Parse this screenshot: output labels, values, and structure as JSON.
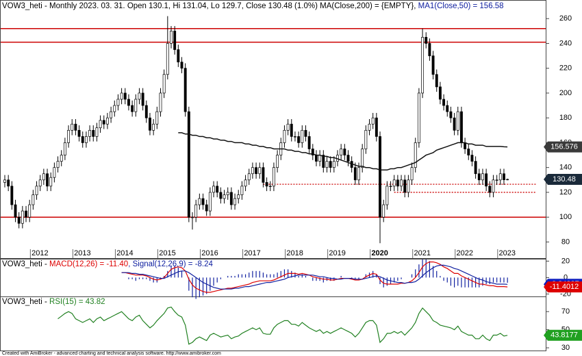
{
  "chart_data": {
    "type": "candlestick",
    "title": "VOW3_heti - Monthly 2023. 03. 31. Open 130.1, Hi 131.04, Lo 129.7, Close 130.48 (1.0%) MA(Close,200) = {EMPTY}, ",
    "ma_title": "MA1(Close,50) = 156.58",
    "footer": "Created with AmiBroker - advanced charting and technical analysis software. http://www.amibroker.com",
    "categories": [
      null,
      null,
      null,
      null,
      null,
      null,
      null,
      null,
      "2012",
      null,
      null,
      null,
      null,
      null,
      null,
      null,
      null,
      null,
      null,
      null,
      "2013",
      null,
      null,
      null,
      null,
      null,
      null,
      null,
      null,
      null,
      null,
      null,
      "2014",
      null,
      null,
      null,
      null,
      null,
      null,
      null,
      null,
      null,
      null,
      null,
      "2015",
      null,
      null,
      null,
      null,
      null,
      null,
      null,
      null,
      null,
      null,
      null,
      "2016",
      null,
      null,
      null,
      null,
      null,
      null,
      null,
      null,
      null,
      null,
      null,
      "2017",
      null,
      null,
      null,
      null,
      null,
      null,
      null,
      null,
      null,
      null,
      null,
      "2018",
      null,
      null,
      null,
      null,
      null,
      null,
      null,
      null,
      null,
      null,
      null,
      "2019",
      null,
      null,
      null,
      null,
      null,
      null,
      null,
      null,
      null,
      null,
      null,
      "2020",
      null,
      null,
      null,
      null,
      null,
      null,
      null,
      null,
      null,
      null,
      null,
      "2021",
      null,
      null,
      null,
      null,
      null,
      null,
      null,
      null,
      null,
      null,
      null,
      "2022",
      null,
      null,
      null,
      null,
      null,
      null,
      null,
      null,
      null,
      null,
      null,
      "2023",
      null,
      null
    ],
    "open": [
      128,
      130,
      125,
      110,
      100,
      95,
      105,
      100,
      110,
      118,
      125,
      130,
      135,
      125,
      132,
      140,
      145,
      150,
      160,
      170,
      175,
      170,
      165,
      160,
      165,
      170,
      165,
      172,
      178,
      175,
      180,
      185,
      190,
      195,
      200,
      195,
      190,
      185,
      195,
      200,
      190,
      180,
      170,
      175,
      185,
      200,
      215,
      240,
      250,
      235,
      225,
      220,
      185,
      100,
      100,
      110,
      115,
      110,
      105,
      120,
      125,
      120,
      115,
      118,
      120,
      110,
      115,
      118,
      125,
      130,
      135,
      140,
      135,
      140,
      128,
      125,
      125,
      140,
      150,
      160,
      170,
      175,
      165,
      165,
      160,
      170,
      165,
      155,
      150,
      145,
      150,
      140,
      145,
      140,
      145,
      150,
      155,
      150,
      145,
      140,
      130,
      140,
      155,
      170,
      175,
      180,
      165,
      100,
      110,
      125,
      125,
      130,
      125,
      130,
      120,
      130,
      140,
      160,
      200,
      245,
      240,
      230,
      215,
      205,
      195,
      190,
      185,
      180,
      170,
      185,
      160,
      155,
      150,
      145,
      135,
      130,
      135,
      125,
      120,
      130,
      130,
      135,
      130.1
    ],
    "high": [
      134,
      134,
      129,
      114,
      104,
      109,
      109,
      114,
      122,
      129,
      134,
      139,
      139,
      136,
      144,
      149,
      154,
      164,
      174,
      179,
      179,
      174,
      169,
      169,
      174,
      174,
      176,
      182,
      182,
      184,
      189,
      194,
      199,
      204,
      204,
      199,
      194,
      199,
      204,
      204,
      194,
      184,
      179,
      189,
      204,
      219,
      262,
      254,
      254,
      239,
      229,
      224,
      189,
      104,
      114,
      119,
      119,
      114,
      124,
      129,
      129,
      124,
      122,
      124,
      124,
      119,
      122,
      129,
      134,
      139,
      144,
      144,
      144,
      144,
      132,
      129,
      144,
      154,
      164,
      174,
      179,
      179,
      169,
      169,
      174,
      174,
      169,
      159,
      154,
      154,
      154,
      149,
      149,
      149,
      154,
      159,
      159,
      154,
      149,
      144,
      144,
      159,
      174,
      179,
      184,
      184,
      169,
      114,
      129,
      129,
      134,
      134,
      134,
      134,
      134,
      144,
      164,
      204,
      252,
      249,
      244,
      234,
      219,
      209,
      199,
      194,
      189,
      184,
      189,
      189,
      164,
      159,
      154,
      149,
      139,
      139,
      139,
      129,
      134,
      134,
      139,
      139,
      131.04
    ],
    "low": [
      124,
      121,
      106,
      96,
      91,
      91,
      96,
      96,
      106,
      114,
      121,
      126,
      121,
      121,
      128,
      136,
      141,
      146,
      156,
      166,
      166,
      161,
      156,
      156,
      161,
      161,
      161,
      168,
      171,
      171,
      176,
      181,
      186,
      191,
      191,
      186,
      181,
      181,
      191,
      186,
      176,
      166,
      166,
      171,
      181,
      196,
      211,
      236,
      231,
      221,
      216,
      181,
      96,
      90,
      96,
      106,
      106,
      101,
      101,
      116,
      116,
      111,
      111,
      114,
      106,
      106,
      111,
      114,
      121,
      126,
      131,
      131,
      131,
      124,
      121,
      121,
      121,
      136,
      146,
      156,
      166,
      161,
      161,
      156,
      156,
      161,
      151,
      146,
      141,
      141,
      136,
      136,
      136,
      136,
      141,
      146,
      146,
      141,
      136,
      126,
      126,
      136,
      151,
      166,
      171,
      161,
      79,
      96,
      106,
      121,
      121,
      121,
      121,
      116,
      116,
      126,
      136,
      156,
      196,
      236,
      226,
      211,
      201,
      191,
      186,
      181,
      176,
      166,
      166,
      156,
      151,
      146,
      141,
      131,
      126,
      126,
      121,
      116,
      116,
      126,
      126,
      126,
      129.7
    ],
    "close": [
      130,
      125,
      110,
      100,
      95,
      105,
      100,
      110,
      118,
      125,
      130,
      135,
      125,
      132,
      140,
      145,
      150,
      160,
      170,
      175,
      170,
      165,
      160,
      165,
      170,
      165,
      172,
      178,
      175,
      180,
      185,
      190,
      195,
      200,
      195,
      190,
      185,
      195,
      200,
      190,
      180,
      170,
      175,
      185,
      200,
      215,
      240,
      250,
      235,
      225,
      220,
      185,
      100,
      100,
      110,
      115,
      110,
      105,
      120,
      125,
      120,
      115,
      118,
      120,
      110,
      115,
      118,
      125,
      130,
      135,
      140,
      135,
      140,
      128,
      125,
      125,
      140,
      150,
      160,
      170,
      175,
      165,
      165,
      160,
      170,
      165,
      155,
      150,
      145,
      150,
      140,
      145,
      140,
      145,
      150,
      155,
      150,
      145,
      140,
      130,
      140,
      155,
      170,
      175,
      180,
      165,
      100,
      110,
      125,
      125,
      130,
      125,
      130,
      120,
      130,
      140,
      160,
      200,
      245,
      240,
      230,
      215,
      205,
      195,
      190,
      185,
      180,
      170,
      185,
      160,
      155,
      150,
      145,
      135,
      130,
      135,
      125,
      120,
      130,
      130,
      135,
      130.1,
      130.48
    ],
    "ma50": {
      "color": "#111111",
      "values": [
        null,
        null,
        null,
        null,
        null,
        null,
        null,
        null,
        null,
        null,
        null,
        null,
        null,
        null,
        null,
        null,
        null,
        null,
        null,
        null,
        null,
        null,
        null,
        null,
        null,
        null,
        null,
        null,
        null,
        null,
        null,
        null,
        null,
        null,
        null,
        null,
        null,
        null,
        null,
        null,
        null,
        null,
        null,
        null,
        null,
        null,
        null,
        null,
        null,
        168,
        168,
        167,
        167,
        166,
        166,
        165,
        165,
        164,
        164,
        163,
        163,
        162,
        162,
        161,
        161,
        160,
        160,
        160,
        159,
        159,
        158,
        158,
        157,
        157,
        156,
        156,
        155,
        155,
        155,
        155,
        154,
        154,
        153,
        153,
        152,
        152,
        151,
        151,
        150,
        150,
        149,
        149,
        148,
        148,
        147,
        146,
        145,
        144,
        143,
        142,
        141,
        141,
        140,
        140,
        139,
        139,
        138,
        138,
        138,
        139,
        139,
        140,
        140,
        141,
        142,
        143,
        144,
        146,
        148,
        150,
        151,
        152,
        154,
        155,
        156,
        157,
        158,
        159,
        160,
        160,
        160,
        159,
        159,
        158,
        158,
        158,
        157,
        157,
        157,
        157,
        157,
        156.7,
        156.576
      ]
    },
    "hlines": [
      252,
      241,
      100
    ],
    "dotted_lines": [
      {
        "value": 126.5,
        "from": 73
      },
      {
        "value": 120,
        "from": 110
      }
    ],
    "line_color": "#cc0000",
    "ylim": [
      67,
      275
    ],
    "yticks": [
      80,
      100,
      120,
      140,
      160,
      180,
      200,
      220,
      240,
      260
    ],
    "macd": {
      "prefix": "VOW3_heti - ",
      "macd_title": "MACD(12,26) = -11.40",
      "signal_title": ", Signal(12,26,9) = -8.24",
      "ylim": [
        -23,
        22
      ],
      "yticks": [
        -20,
        0,
        20
      ],
      "macd_color": "#dd0000",
      "signal_color": "#1020a0",
      "macd_values": [
        null,
        null,
        null,
        null,
        null,
        null,
        null,
        null,
        null,
        null,
        null,
        null,
        null,
        null,
        null,
        null,
        null,
        null,
        null,
        null,
        null,
        null,
        null,
        null,
        null,
        null,
        null,
        null,
        null,
        null,
        null,
        null,
        null,
        6,
        6,
        5,
        4,
        3,
        3,
        3,
        2,
        0,
        -2,
        -3,
        -2,
        0,
        5,
        10,
        12,
        13,
        12,
        8,
        -2,
        -9,
        -13,
        -15,
        -17,
        -18,
        -18,
        -17,
        -16,
        -15,
        -14,
        -13,
        -13,
        -12,
        -11,
        -10,
        -9,
        -8,
        -6,
        -5,
        -4,
        -4,
        -4,
        -4,
        -3,
        -1,
        1,
        3,
        5,
        5,
        5,
        4,
        5,
        4,
        3,
        1,
        0,
        -1,
        -2,
        -2,
        -3,
        -3,
        -2,
        -1,
        -1,
        -1,
        -2,
        -3,
        -3,
        -2,
        1,
        3,
        5,
        4,
        -3,
        -7,
        -8,
        -8,
        -8,
        -8,
        -7,
        -7,
        -6,
        -4,
        0,
        6,
        13,
        17,
        19,
        19,
        18,
        16,
        13,
        11,
        8,
        5,
        5,
        2,
        0,
        -2,
        -4,
        -6,
        -8,
        -8,
        -9,
        -10,
        -10,
        -11,
        -11,
        -11,
        -11.4012
      ],
      "signal_values": [
        null,
        null,
        null,
        null,
        null,
        null,
        null,
        null,
        null,
        null,
        null,
        null,
        null,
        null,
        null,
        null,
        null,
        null,
        null,
        null,
        null,
        null,
        null,
        null,
        null,
        null,
        null,
        null,
        null,
        null,
        null,
        null,
        null,
        6,
        6,
        6,
        5,
        5,
        4,
        4,
        3,
        2,
        1,
        0,
        -1,
        -1,
        1,
        3,
        5,
        7,
        8,
        8,
        6,
        3,
        0,
        -3,
        -6,
        -8,
        -10,
        -12,
        -13,
        -14,
        -14,
        -14,
        -14,
        -13,
        -13,
        -12,
        -11,
        -11,
        -10,
        -9,
        -8,
        -7,
        -6,
        -6,
        -5,
        -4,
        -3,
        -2,
        0,
        1,
        2,
        3,
        3,
        3,
        3,
        3,
        2,
        1,
        1,
        0,
        -1,
        -1,
        -2,
        -2,
        -1,
        -1,
        -1,
        -2,
        -2,
        -2,
        -1,
        0,
        1,
        2,
        1,
        -1,
        -3,
        -4,
        -5,
        -6,
        -6,
        -7,
        -6,
        -6,
        -5,
        -2,
        2,
        6,
        9,
        12,
        14,
        15,
        15,
        14,
        13,
        11,
        10,
        8,
        6,
        4,
        2,
        0,
        -2,
        -3,
        -5,
        -6,
        -7,
        -8,
        -8,
        -8,
        -8.24387
      ]
    },
    "rsi": {
      "prefix": "VOW3_heti - ",
      "rsi_title": "RSI(15) = 43.82",
      "ylim": [
        27,
        86
      ],
      "yticks": [
        30,
        50,
        70
      ],
      "color": "#208020",
      "values": [
        null,
        null,
        null,
        null,
        null,
        null,
        null,
        null,
        null,
        null,
        null,
        null,
        null,
        null,
        null,
        62,
        65,
        68,
        70,
        68,
        62,
        60,
        58,
        60,
        62,
        58,
        62,
        64,
        60,
        62,
        64,
        66,
        68,
        70,
        66,
        62,
        60,
        64,
        66,
        60,
        56,
        52,
        55,
        60,
        64,
        68,
        74,
        75,
        70,
        66,
        64,
        55,
        34,
        36,
        40,
        42,
        40,
        38,
        44,
        46,
        44,
        42,
        43,
        44,
        40,
        42,
        43,
        46,
        48,
        50,
        52,
        50,
        52,
        46,
        45,
        45,
        52,
        56,
        58,
        60,
        60,
        56,
        56,
        54,
        58,
        55,
        52,
        50,
        48,
        50,
        46,
        48,
        46,
        48,
        50,
        52,
        50,
        48,
        46,
        42,
        46,
        52,
        58,
        60,
        60,
        55,
        36,
        40,
        46,
        46,
        48,
        46,
        48,
        44,
        48,
        52,
        58,
        68,
        74,
        70,
        66,
        60,
        58,
        55,
        54,
        53,
        52,
        50,
        54,
        48,
        46,
        44,
        44,
        40,
        40,
        44,
        40,
        38,
        44,
        44,
        46,
        43,
        43.8177
      ]
    }
  }
}
